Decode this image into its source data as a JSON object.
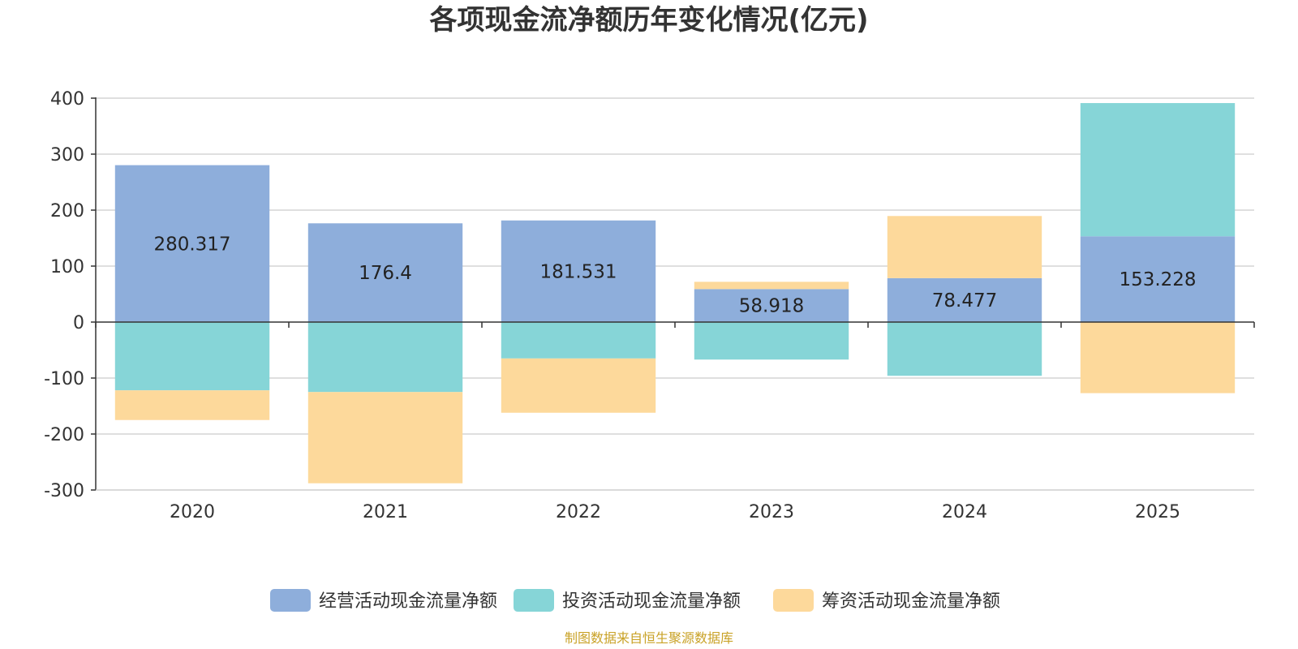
{
  "chart_data": {
    "type": "bar",
    "stacked": true,
    "title": "各项现金流净额历年变化情况(亿元)",
    "categories": [
      "2020",
      "2021",
      "2022",
      "2023",
      "2024",
      "2025"
    ],
    "ylim": [
      -300,
      400
    ],
    "yticks": [
      400,
      300,
      200,
      100,
      0,
      -100,
      -200,
      -300
    ],
    "series": [
      {
        "name": "经营活动现金流量净额",
        "color": "#8eaedb",
        "values": [
          280.317,
          176.4,
          181.531,
          58.918,
          78.477,
          153.228
        ]
      },
      {
        "name": "投资活动现金流量净额",
        "color": "#86d5d7",
        "values": [
          -122,
          -125,
          -65,
          -67,
          -96,
          238
        ]
      },
      {
        "name": "筹资活动现金流量净额",
        "color": "#fdd99b",
        "values": [
          -53,
          -163,
          -97,
          13,
          111,
          -127
        ]
      }
    ],
    "data_labels": [
      "280.317",
      "176.4",
      "181.531",
      "58.918",
      "78.477",
      "153.228"
    ],
    "legend_position": "bottom",
    "grid": true
  },
  "source_note": "制图数据来自恒生聚源数据库",
  "source_color": "#c9a227"
}
